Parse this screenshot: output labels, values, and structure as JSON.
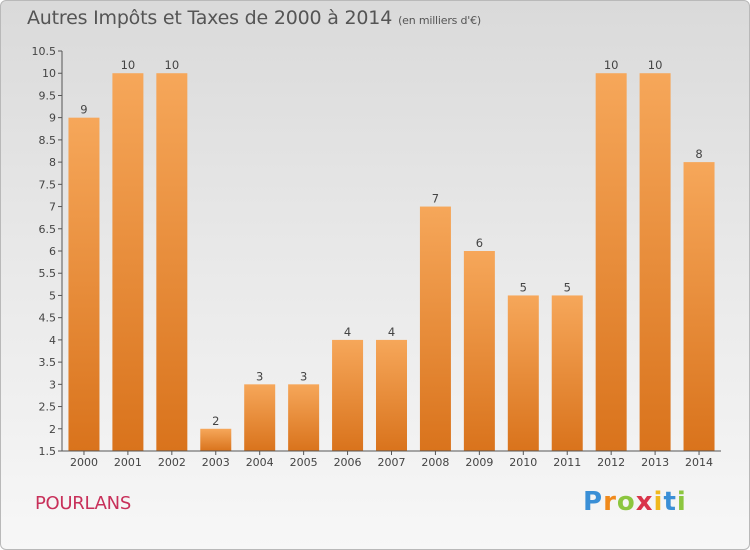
{
  "title": "Autres Impôts et Taxes de 2000 à 2014",
  "unit_note": "(en milliers d'€)",
  "commune": "POURLANS",
  "logo": {
    "letters": [
      "P",
      "r",
      "o",
      "x",
      "i",
      "t",
      "i"
    ],
    "colors": [
      "#3a8fd6",
      "#f08a1c",
      "#8cc63f",
      "#d9344a",
      "#f0b81c",
      "#3a8fd6",
      "#8cc63f"
    ]
  },
  "colors": {
    "bar_light": "#f6a75a",
    "bar_dark": "#d9731c",
    "axis": "#555555",
    "commune_text": "#c8305a"
  },
  "chart_data": {
    "type": "bar",
    "title": "Autres Impôts et Taxes de 2000 à 2014",
    "ylabel": "(en milliers d'€)",
    "categories": [
      "2000",
      "2001",
      "2002",
      "2003",
      "2004",
      "2005",
      "2006",
      "2007",
      "2008",
      "2009",
      "2010",
      "2011",
      "2012",
      "2013",
      "2014"
    ],
    "values": [
      9,
      10,
      10,
      2,
      3,
      3,
      4,
      4,
      7,
      6,
      5,
      5,
      10,
      10,
      8
    ],
    "ylim": [
      1.5,
      10.5
    ],
    "yticks": [
      "1.5",
      "2",
      "2.5",
      "3",
      "3.5",
      "4",
      "4.5",
      "5",
      "5.5",
      "6",
      "6.5",
      "7",
      "7.5",
      "8",
      "8.5",
      "9",
      "9.5",
      "10",
      "10.5"
    ],
    "grid": false,
    "legend": "none"
  }
}
